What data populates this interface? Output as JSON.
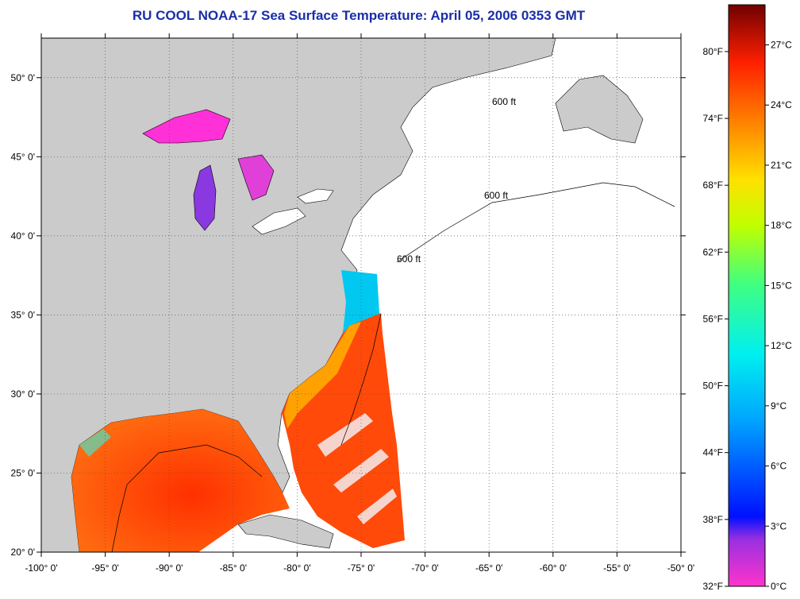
{
  "title": "RU COOL  NOAA-17  Sea Surface Temperature:  April 05, 2006 0353 GMT",
  "map": {
    "lon_range": [
      -100,
      -50
    ],
    "lat_range": [
      20,
      52.5
    ],
    "lon_ticks": [
      "-100° 0'",
      "-95° 0'",
      "-90° 0'",
      "-85° 0'",
      "-80° 0'",
      "-75° 0'",
      "-70° 0'",
      "-65° 0'",
      "-60° 0'",
      "-55° 0'",
      "-50° 0'"
    ],
    "lat_ticks": [
      "50° 0'",
      "45° 0'",
      "40° 0'",
      "35° 0'",
      "30° 0'",
      "25° 0'",
      "20° 0'"
    ],
    "isobath_label": "600 ft",
    "land_color": "#cbcbcb",
    "ocean_nodata_color": "#ffffff",
    "grid": "dotted"
  },
  "colorbar": {
    "fahrenheit_labels": [
      "80°F",
      "74°F",
      "68°F",
      "62°F",
      "56°F",
      "50°F",
      "44°F",
      "38°F",
      "32°F"
    ],
    "celsius_labels": [
      "27°C",
      "24°C",
      "21°C",
      "18°C",
      "15°C",
      "12°C",
      "9°C",
      "6°C",
      "3°C",
      "0°C"
    ],
    "colors": [
      "#ff33cc",
      "#8030e0",
      "#0010ff",
      "#00a0ff",
      "#00f0f0",
      "#40ff80",
      "#c0ff00",
      "#ffe000",
      "#ff8000",
      "#ff2000",
      "#c00000",
      "#700000"
    ]
  }
}
